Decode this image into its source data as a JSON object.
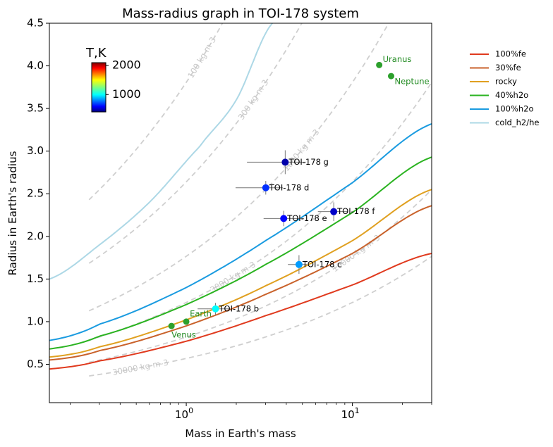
{
  "chart_data": {
    "type": "scatter",
    "title": "Mass-radius graph in TOI-178 system",
    "xlabel": "Mass in Earth's mass",
    "ylabel": "Radius in Earth's radius",
    "xscale": "log",
    "xlim": [
      0.15,
      30
    ],
    "ylim": [
      0.05,
      4.5
    ],
    "xticks": [
      {
        "value": 1,
        "label": "10^0"
      },
      {
        "value": 10,
        "label": "10^1"
      }
    ],
    "yticks": [
      0.5,
      1.0,
      1.5,
      2.0,
      2.5,
      3.0,
      3.5,
      4.0,
      4.5
    ],
    "ytick_labels": [
      "0.5",
      "1.0",
      "1.5",
      "2.0",
      "2.5",
      "3.0",
      "3.5",
      "4.0",
      "4.5"
    ],
    "grid": false,
    "legend_position": "outside-right",
    "colorbar": {
      "title": "T,K",
      "range": [
        400,
        2100
      ],
      "ticks": [
        {
          "value": 1000,
          "label": "1000"
        },
        {
          "value": 2000,
          "label": "2000"
        }
      ],
      "colormap": "jet",
      "placement": "top-left inside"
    },
    "composition_curves": [
      {
        "name": "100%fe",
        "color": "#e03a1e",
        "values": [
          [
            0.15,
            0.445
          ],
          [
            0.3,
            0.54
          ],
          [
            1,
            0.77
          ],
          [
            3,
            1.07
          ],
          [
            10,
            1.43
          ],
          [
            30,
            1.8
          ]
        ]
      },
      {
        "name": "30%fe",
        "color": "#c9622b",
        "values": [
          [
            0.15,
            0.55
          ],
          [
            0.3,
            0.66
          ],
          [
            1,
            0.95
          ],
          [
            3,
            1.32
          ],
          [
            10,
            1.8
          ],
          [
            30,
            2.36
          ]
        ]
      },
      {
        "name": "rocky",
        "color": "#e0a020",
        "values": [
          [
            0.15,
            0.585
          ],
          [
            0.3,
            0.705
          ],
          [
            1,
            1.02
          ],
          [
            3,
            1.42
          ],
          [
            10,
            1.95
          ],
          [
            30,
            2.55
          ]
        ]
      },
      {
        "name": "40%h2o",
        "color": "#2ab320",
        "values": [
          [
            0.15,
            0.68
          ],
          [
            0.3,
            0.83
          ],
          [
            1,
            1.2
          ],
          [
            3,
            1.67
          ],
          [
            10,
            2.28
          ],
          [
            30,
            2.93
          ]
        ]
      },
      {
        "name": "100%h2o",
        "color": "#1a9be0",
        "values": [
          [
            0.15,
            0.78
          ],
          [
            0.3,
            0.97
          ],
          [
            1,
            1.4
          ],
          [
            3,
            1.95
          ],
          [
            10,
            2.63
          ],
          [
            30,
            3.32
          ]
        ]
      },
      {
        "name": "cold_h2/he",
        "color": "#add8e6",
        "values": [
          [
            0.15,
            1.5
          ],
          [
            0.3,
            1.9
          ],
          [
            0.6,
            2.4
          ],
          [
            1.2,
            3.05
          ],
          [
            2,
            3.6
          ],
          [
            3.3,
            4.5
          ]
        ]
      }
    ],
    "density_isolines": [
      {
        "label": "100 kg m-3",
        "density": 100
      },
      {
        "label": "300 kg m-3",
        "density": 300
      },
      {
        "label": "1000 kg m-3",
        "density": 1000
      },
      {
        "label": "3000 kg m-3",
        "density": 3000
      },
      {
        "label": "10000 kg m-3",
        "density": 10000
      },
      {
        "label": "30000 kg m-3",
        "density": 30000
      }
    ],
    "planets": [
      {
        "name": "TOI-178 b",
        "mass": 1.5,
        "radius": 1.15,
        "mass_err": [
          0.33,
          0.33
        ],
        "radius_err": [
          0.07,
          0.07
        ],
        "temperature": 1040
      },
      {
        "name": "TOI-178 c",
        "mass": 4.77,
        "radius": 1.67,
        "mass_err": [
          0.68,
          0.55
        ],
        "radius_err": [
          0.11,
          0.11
        ],
        "temperature": 873
      },
      {
        "name": "TOI-178 d",
        "mass": 3.01,
        "radius": 2.57,
        "mass_err": [
          1.03,
          0.8
        ],
        "radius_err": [
          0.08,
          0.08
        ],
        "temperature": 690
      },
      {
        "name": "TOI-178 e",
        "mass": 3.86,
        "radius": 2.21,
        "mass_err": [
          0.94,
          1.25
        ],
        "radius_err": [
          0.09,
          0.09
        ],
        "temperature": 618
      },
      {
        "name": "TOI-178 f",
        "mass": 7.72,
        "radius": 2.29,
        "mass_err": [
          1.52,
          1.67
        ],
        "radius_err": [
          0.11,
          0.11
        ],
        "temperature": 521
      },
      {
        "name": "TOI-178 g",
        "mass": 3.94,
        "radius": 2.87,
        "mass_err": [
          1.62,
          1.31
        ],
        "radius_err": [
          0.14,
          0.14
        ],
        "temperature": 470
      }
    ],
    "solar_system": [
      {
        "name": "Venus",
        "mass": 0.815,
        "radius": 0.949
      },
      {
        "name": "Earth",
        "mass": 1.0,
        "radius": 1.0
      },
      {
        "name": "Uranus",
        "mass": 14.5,
        "radius": 4.01
      },
      {
        "name": "Neptune",
        "mass": 17.1,
        "radius": 3.88
      }
    ],
    "legend": [
      "100%fe",
      "30%fe",
      "rocky",
      "40%h2o",
      "100%h2o",
      "cold_h2/he"
    ]
  }
}
